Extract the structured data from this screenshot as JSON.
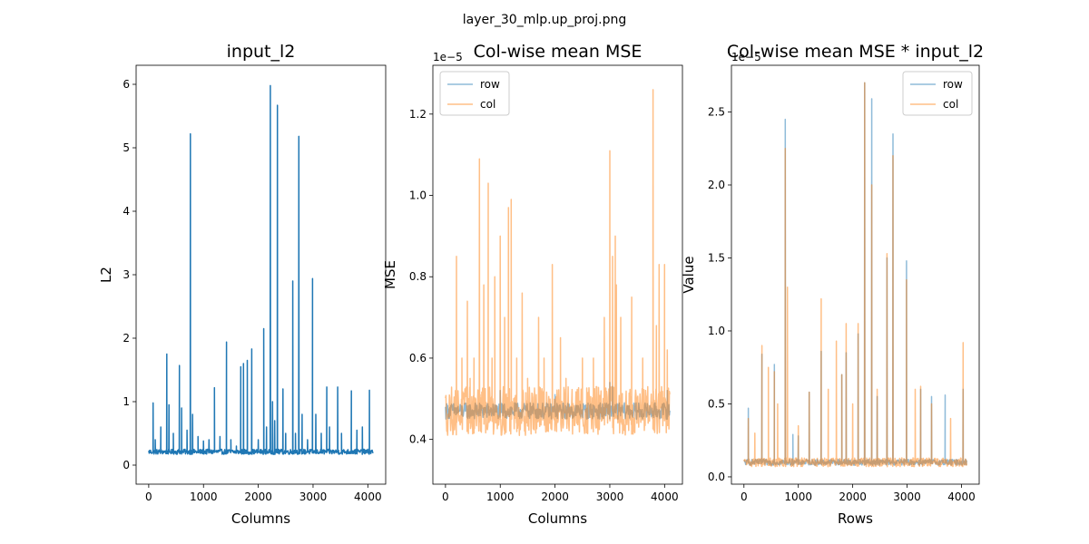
{
  "figure": {
    "suptitle": "layer_30_mlp.up_proj.png"
  },
  "chart_data": [
    {
      "type": "line",
      "title": "input_l2",
      "xlabel": "Columns",
      "ylabel": "L2",
      "offset_label": "",
      "xlim": [
        -230,
        4326
      ],
      "ylim": [
        -0.3,
        6.3
      ],
      "xticks": [
        0,
        1000,
        2000,
        3000,
        4000
      ],
      "yticks": [
        0,
        1,
        2,
        3,
        4,
        5,
        6
      ],
      "ytick_labels": [
        "0",
        "1",
        "2",
        "3",
        "4",
        "5",
        "6"
      ],
      "legend": null,
      "series": [
        {
          "name": "",
          "color": "#1f77b4",
          "opacity": 1,
          "baseline": 0.21,
          "noise": 0.04,
          "spikes": [
            [
              80,
              0.98
            ],
            [
              120,
              0.4
            ],
            [
              220,
              0.6
            ],
            [
              330,
              1.75
            ],
            [
              370,
              0.95
            ],
            [
              450,
              0.5
            ],
            [
              560,
              1.57
            ],
            [
              600,
              0.9
            ],
            [
              700,
              0.55
            ],
            [
              760,
              5.22
            ],
            [
              800,
              0.8
            ],
            [
              900,
              0.45
            ],
            [
              1000,
              0.38
            ],
            [
              1100,
              0.4
            ],
            [
              1200,
              1.22
            ],
            [
              1300,
              0.45
            ],
            [
              1420,
              1.94
            ],
            [
              1500,
              0.4
            ],
            [
              1600,
              0.3
            ],
            [
              1680,
              1.55
            ],
            [
              1730,
              1.6
            ],
            [
              1800,
              1.65
            ],
            [
              1880,
              1.83
            ],
            [
              2000,
              0.4
            ],
            [
              2100,
              2.15
            ],
            [
              2150,
              0.6
            ],
            [
              2220,
              5.98
            ],
            [
              2260,
              1.0
            ],
            [
              2300,
              0.7
            ],
            [
              2350,
              5.67
            ],
            [
              2450,
              1.2
            ],
            [
              2500,
              0.5
            ],
            [
              2630,
              2.9
            ],
            [
              2680,
              0.5
            ],
            [
              2740,
              5.18
            ],
            [
              2800,
              0.8
            ],
            [
              2900,
              0.4
            ],
            [
              2990,
              2.94
            ],
            [
              3050,
              0.8
            ],
            [
              3150,
              0.5
            ],
            [
              3250,
              1.23
            ],
            [
              3300,
              0.6
            ],
            [
              3450,
              1.23
            ],
            [
              3520,
              0.5
            ],
            [
              3700,
              1.17
            ],
            [
              3800,
              0.55
            ],
            [
              3900,
              0.6
            ],
            [
              4030,
              1.18
            ]
          ]
        }
      ]
    },
    {
      "type": "line",
      "title": "Col-wise mean MSE",
      "xlabel": "Columns",
      "ylabel": "MSE",
      "offset_label": "1e−5",
      "xlim": [
        -230,
        4326
      ],
      "ylim": [
        0.29,
        1.32
      ],
      "xticks": [
        0,
        1000,
        2000,
        3000,
        4000
      ],
      "yticks": [
        0.4,
        0.6,
        0.8,
        1.0,
        1.2
      ],
      "ytick_labels": [
        "0.4",
        "0.6",
        "0.8",
        "1.0",
        "1.2"
      ],
      "legend": {
        "location": "upper left",
        "entries": [
          {
            "label": "row",
            "color": "#1f77b4"
          },
          {
            "label": "col",
            "color": "#ff7f0e"
          }
        ]
      },
      "series": [
        {
          "name": "row",
          "color": "#1f77b4",
          "opacity": 0.5,
          "baseline": 0.47,
          "noise": 0.02,
          "spikes": [
            [
              1000,
              0.52
            ],
            [
              2000,
              0.51
            ],
            [
              3000,
              0.54
            ],
            [
              3050,
              0.53
            ],
            [
              4050,
              0.52
            ]
          ]
        },
        {
          "name": "col",
          "color": "#ff7f0e",
          "opacity": 0.5,
          "baseline": 0.47,
          "noise": 0.06,
          "spikes": [
            [
              200,
              0.85
            ],
            [
              300,
              0.6
            ],
            [
              400,
              0.74
            ],
            [
              450,
              0.55
            ],
            [
              520,
              0.6
            ],
            [
              620,
              1.09
            ],
            [
              700,
              0.78
            ],
            [
              780,
              1.03
            ],
            [
              850,
              0.6
            ],
            [
              900,
              0.8
            ],
            [
              1000,
              0.9
            ],
            [
              1080,
              0.7
            ],
            [
              1150,
              0.97
            ],
            [
              1200,
              0.99
            ],
            [
              1300,
              0.6
            ],
            [
              1400,
              0.76
            ],
            [
              1500,
              0.55
            ],
            [
              1700,
              0.7
            ],
            [
              1800,
              0.6
            ],
            [
              1950,
              0.83
            ],
            [
              2100,
              0.65
            ],
            [
              2200,
              0.55
            ],
            [
              2500,
              0.6
            ],
            [
              2700,
              0.6
            ],
            [
              2900,
              0.7
            ],
            [
              3000,
              1.11
            ],
            [
              3050,
              0.85
            ],
            [
              3100,
              0.9
            ],
            [
              3120,
              0.78
            ],
            [
              3200,
              0.7
            ],
            [
              3400,
              0.75
            ],
            [
              3600,
              0.6
            ],
            [
              3790,
              1.26
            ],
            [
              3850,
              0.68
            ],
            [
              3900,
              0.83
            ],
            [
              4000,
              0.83
            ],
            [
              4050,
              0.62
            ]
          ]
        }
      ]
    },
    {
      "type": "line",
      "title": "Col-wise mean MSE * input_l2",
      "xlabel": "Rows",
      "ylabel": "Value",
      "offset_label": "1e−5",
      "xlim": [
        -230,
        4326
      ],
      "ylim": [
        -0.05,
        2.82
      ],
      "xticks": [
        0,
        1000,
        2000,
        3000,
        4000
      ],
      "yticks": [
        0.0,
        0.5,
        1.0,
        1.5,
        2.0,
        2.5
      ],
      "ytick_labels": [
        "0.0",
        "0.5",
        "1.0",
        "1.5",
        "2.0",
        "2.5"
      ],
      "legend": {
        "location": "upper right",
        "entries": [
          {
            "label": "row",
            "color": "#1f77b4"
          },
          {
            "label": "col",
            "color": "#ff7f0e"
          }
        ]
      },
      "series": [
        {
          "name": "row",
          "color": "#1f77b4",
          "opacity": 0.5,
          "baseline": 0.1,
          "noise": 0.02,
          "spikes": [
            [
              80,
              0.47
            ],
            [
              330,
              0.84
            ],
            [
              560,
              0.77
            ],
            [
              760,
              2.45
            ],
            [
              900,
              0.29
            ],
            [
              1000,
              0.28
            ],
            [
              1200,
              0.58
            ],
            [
              1420,
              0.86
            ],
            [
              1800,
              0.7
            ],
            [
              1880,
              0.85
            ],
            [
              2100,
              0.98
            ],
            [
              2220,
              2.7
            ],
            [
              2350,
              2.59
            ],
            [
              2450,
              0.55
            ],
            [
              2630,
              1.5
            ],
            [
              2740,
              2.35
            ],
            [
              2990,
              1.48
            ],
            [
              3250,
              0.6
            ],
            [
              3450,
              0.55
            ],
            [
              3700,
              0.56
            ],
            [
              4030,
              0.6
            ]
          ]
        },
        {
          "name": "col",
          "color": "#ff7f0e",
          "opacity": 0.5,
          "baseline": 0.1,
          "noise": 0.03,
          "spikes": [
            [
              80,
              0.4
            ],
            [
              200,
              0.3
            ],
            [
              330,
              0.9
            ],
            [
              450,
              0.75
            ],
            [
              560,
              0.72
            ],
            [
              620,
              0.5
            ],
            [
              760,
              2.25
            ],
            [
              800,
              1.3
            ],
            [
              1000,
              0.35
            ],
            [
              1200,
              0.58
            ],
            [
              1420,
              1.22
            ],
            [
              1550,
              0.6
            ],
            [
              1700,
              0.93
            ],
            [
              1800,
              0.7
            ],
            [
              1880,
              1.05
            ],
            [
              2000,
              0.5
            ],
            [
              2100,
              1.05
            ],
            [
              2220,
              2.7
            ],
            [
              2350,
              2.0
            ],
            [
              2450,
              0.6
            ],
            [
              2630,
              1.53
            ],
            [
              2740,
              2.2
            ],
            [
              2990,
              1.35
            ],
            [
              3150,
              0.6
            ],
            [
              3250,
              0.62
            ],
            [
              3450,
              0.5
            ],
            [
              3800,
              0.4
            ],
            [
              4030,
              0.92
            ]
          ]
        }
      ]
    }
  ]
}
